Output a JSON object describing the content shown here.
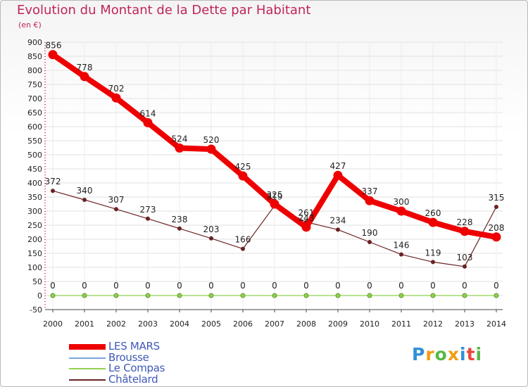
{
  "chart_data": {
    "type": "line",
    "title": "Evolution du Montant de la Dette par Habitant",
    "subtitle": "(en €)",
    "xlabel": "",
    "ylabel": "",
    "categories": [
      "2000",
      "2001",
      "2002",
      "2003",
      "2004",
      "2005",
      "2006",
      "2007",
      "2008",
      "2009",
      "2010",
      "2011",
      "2012",
      "2013",
      "2014"
    ],
    "ylim": [
      -50,
      900
    ],
    "yticks": [
      "900",
      "850",
      "800",
      "750",
      "700",
      "650",
      "600",
      "550",
      "500",
      "450",
      "400",
      "350",
      "300",
      "250",
      "200",
      "150",
      "100",
      "50",
      "0",
      "-50"
    ],
    "series": [
      {
        "name": "LES MARS",
        "color": "#ee0000",
        "values": [
          856,
          778,
          702,
          614,
          524,
          520,
          425,
          325,
          243,
          427,
          337,
          300,
          260,
          228,
          208
        ],
        "labels": [
          "856",
          "778",
          "702",
          "614",
          "524",
          "520",
          "425",
          "325",
          "243",
          "427",
          "337",
          "300",
          "260",
          "228",
          "208"
        ]
      },
      {
        "name": "Brousse",
        "color": "#7ca6d8",
        "values": [
          null,
          null,
          null,
          null,
          null,
          null,
          null,
          null,
          null,
          null,
          null,
          null,
          null,
          null,
          null
        ]
      },
      {
        "name": "Le Compas",
        "color": "#92d050",
        "values": [
          0,
          0,
          0,
          0,
          0,
          0,
          0,
          0,
          0,
          0,
          0,
          0,
          0,
          0,
          0
        ],
        "labels": [
          "0",
          "0",
          "0",
          "0",
          "0",
          "0",
          "0",
          "0",
          "0",
          "0",
          "0",
          "0",
          "0",
          "0",
          "0"
        ]
      },
      {
        "name": "Châtelard",
        "color": "#6b2223",
        "values": [
          372,
          340,
          307,
          273,
          238,
          203,
          166,
          319,
          261,
          234,
          190,
          146,
          119,
          103,
          315
        ],
        "labels": [
          "372",
          "340",
          "307",
          "273",
          "238",
          "203",
          "166",
          "319",
          "261",
          "234",
          "190",
          "146",
          "119",
          "103",
          "315"
        ]
      }
    ]
  },
  "logo": {
    "letters": [
      "P",
      "r",
      "o",
      "x",
      "i",
      "t",
      "i"
    ],
    "colors": [
      "#2f8fd6",
      "#f39c12",
      "#58b947",
      "#f39c12",
      "#2f8fd6",
      "#e8483b",
      "#58b947"
    ]
  }
}
